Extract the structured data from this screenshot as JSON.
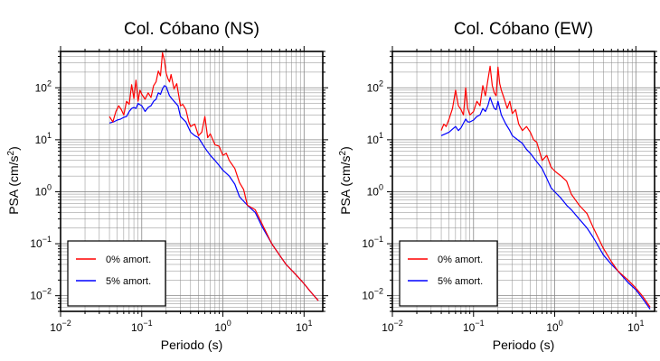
{
  "colors": {
    "series_0": "#ff0000",
    "series_5": "#0000ff",
    "axes": "#000000",
    "grid": "#888888"
  },
  "chart_data": [
    {
      "type": "line",
      "title": "Col. Cóbano (NS)",
      "xlabel": "Periodo (s)",
      "ylabel_main": "PSA (cm/s",
      "ylabel_sup": "2",
      "ylabel_tail": ")",
      "x_scale": "log",
      "y_scale": "log",
      "xlim": [
        0.01,
        17
      ],
      "ylim": [
        0.005,
        500
      ],
      "grid": true,
      "legend_position": "bottom-left",
      "x_ticks": [
        {
          "value": 0.01,
          "base": "10",
          "exp": "−2"
        },
        {
          "value": 0.1,
          "base": "10",
          "exp": "−1"
        },
        {
          "value": 1,
          "base": "10",
          "exp": "0"
        },
        {
          "value": 10,
          "base": "10",
          "exp": "1"
        }
      ],
      "y_ticks": [
        {
          "value": 0.01,
          "base": "10",
          "exp": "−2"
        },
        {
          "value": 0.1,
          "base": "10",
          "exp": "−1"
        },
        {
          "value": 1,
          "base": "10",
          "exp": "0"
        },
        {
          "value": 10,
          "base": "10",
          "exp": "1"
        },
        {
          "value": 100,
          "base": "10",
          "exp": "2"
        }
      ],
      "series": [
        {
          "name": "0% amort.",
          "color": "#ff0000",
          "x": [
            0.04,
            0.044,
            0.048,
            0.052,
            0.056,
            0.06,
            0.065,
            0.07,
            0.075,
            0.08,
            0.085,
            0.09,
            0.095,
            0.1,
            0.11,
            0.12,
            0.13,
            0.14,
            0.15,
            0.16,
            0.17,
            0.18,
            0.19,
            0.2,
            0.21,
            0.22,
            0.23,
            0.25,
            0.27,
            0.3,
            0.32,
            0.35,
            0.38,
            0.4,
            0.45,
            0.5,
            0.55,
            0.6,
            0.65,
            0.7,
            0.8,
            0.9,
            1.0,
            1.1,
            1.2,
            1.4,
            1.6,
            1.8,
            2.0,
            2.5,
            3.0,
            4.0,
            5.0,
            6.0,
            8.0,
            10.0,
            12.0,
            15.0
          ],
          "y": [
            28,
            22,
            35,
            45,
            38,
            30,
            55,
            48,
            115,
            62,
            140,
            55,
            90,
            75,
            60,
            80,
            65,
            110,
            130,
            210,
            170,
            470,
            340,
            190,
            150,
            130,
            180,
            95,
            120,
            45,
            48,
            38,
            22,
            18,
            20,
            12,
            14,
            28,
            11,
            13,
            8,
            7.5,
            5,
            5.5,
            4,
            2.8,
            1.5,
            1.1,
            0.55,
            0.45,
            0.25,
            0.1,
            0.06,
            0.04,
            0.025,
            0.017,
            0.012,
            0.008
          ]
        },
        {
          "name": "5% amort.",
          "color": "#0000ff",
          "x": [
            0.04,
            0.045,
            0.05,
            0.055,
            0.06,
            0.065,
            0.07,
            0.075,
            0.08,
            0.085,
            0.09,
            0.1,
            0.11,
            0.12,
            0.13,
            0.14,
            0.15,
            0.16,
            0.17,
            0.18,
            0.19,
            0.2,
            0.22,
            0.25,
            0.28,
            0.3,
            0.35,
            0.4,
            0.45,
            0.5,
            0.6,
            0.7,
            0.8,
            0.9,
            1.0,
            1.2,
            1.4,
            1.6,
            2.0,
            2.5,
            3.0,
            4.0,
            5.0,
            6.0,
            8.0,
            10.0,
            12.0,
            15.0
          ],
          "y": [
            21,
            22,
            24,
            25,
            27,
            28,
            35,
            40,
            42,
            40,
            50,
            45,
            35,
            42,
            45,
            55,
            60,
            80,
            75,
            95,
            110,
            105,
            70,
            55,
            45,
            28,
            22,
            14,
            12,
            11,
            7,
            5,
            4,
            3.2,
            2.6,
            2,
            1.4,
            0.8,
            0.55,
            0.4,
            0.22,
            0.1,
            0.06,
            0.04,
            0.025,
            0.017,
            0.012,
            0.008
          ]
        }
      ]
    },
    {
      "type": "line",
      "title": "Col. Cóbano (EW)",
      "xlabel": "Periodo (s)",
      "ylabel_main": "PSA (cm/s",
      "ylabel_sup": "2",
      "ylabel_tail": ")",
      "x_scale": "log",
      "y_scale": "log",
      "xlim": [
        0.01,
        17
      ],
      "ylim": [
        0.005,
        500
      ],
      "grid": true,
      "legend_position": "bottom-left",
      "x_ticks": [
        {
          "value": 0.01,
          "base": "10",
          "exp": "−2"
        },
        {
          "value": 0.1,
          "base": "10",
          "exp": "−1"
        },
        {
          "value": 1,
          "base": "10",
          "exp": "0"
        },
        {
          "value": 10,
          "base": "10",
          "exp": "1"
        }
      ],
      "y_ticks": [
        {
          "value": 0.01,
          "base": "10",
          "exp": "−2"
        },
        {
          "value": 0.1,
          "base": "10",
          "exp": "−1"
        },
        {
          "value": 1,
          "base": "10",
          "exp": "0"
        },
        {
          "value": 10,
          "base": "10",
          "exp": "1"
        },
        {
          "value": 100,
          "base": "10",
          "exp": "2"
        }
      ],
      "series": [
        {
          "name": "0% amort.",
          "color": "#ff0000",
          "x": [
            0.04,
            0.043,
            0.046,
            0.05,
            0.055,
            0.06,
            0.065,
            0.07,
            0.075,
            0.08,
            0.085,
            0.09,
            0.1,
            0.11,
            0.12,
            0.13,
            0.14,
            0.15,
            0.16,
            0.17,
            0.18,
            0.19,
            0.2,
            0.21,
            0.22,
            0.24,
            0.26,
            0.28,
            0.3,
            0.33,
            0.36,
            0.4,
            0.45,
            0.5,
            0.55,
            0.6,
            0.65,
            0.7,
            0.8,
            0.9,
            1.0,
            1.2,
            1.4,
            1.6,
            2.0,
            2.5,
            3.0,
            4.0,
            5.0,
            6.0,
            8.0,
            10.0,
            12.0,
            15.0
          ],
          "y": [
            15,
            20,
            18,
            25,
            40,
            90,
            45,
            38,
            30,
            100,
            40,
            30,
            35,
            55,
            45,
            110,
            70,
            140,
            260,
            110,
            80,
            70,
            250,
            120,
            90,
            60,
            40,
            55,
            32,
            38,
            20,
            15,
            18,
            14,
            10,
            9,
            6,
            4,
            5,
            3,
            2.5,
            2,
            1.6,
            0.9,
            0.55,
            0.38,
            0.2,
            0.08,
            0.045,
            0.03,
            0.02,
            0.014,
            0.01,
            0.006
          ]
        },
        {
          "name": "5% amort.",
          "color": "#0000ff",
          "x": [
            0.04,
            0.045,
            0.05,
            0.055,
            0.06,
            0.065,
            0.07,
            0.08,
            0.085,
            0.09,
            0.1,
            0.11,
            0.12,
            0.13,
            0.14,
            0.15,
            0.16,
            0.17,
            0.18,
            0.19,
            0.2,
            0.22,
            0.25,
            0.28,
            0.3,
            0.35,
            0.4,
            0.45,
            0.5,
            0.6,
            0.7,
            0.8,
            0.9,
            1.0,
            1.2,
            1.4,
            1.6,
            2.0,
            2.5,
            3.0,
            4.0,
            5.0,
            6.0,
            8.0,
            10.0,
            12.0,
            15.0
          ],
          "y": [
            12,
            13,
            14,
            16,
            18,
            15,
            17,
            25,
            22,
            22,
            24,
            28,
            30,
            40,
            35,
            45,
            65,
            50,
            40,
            38,
            55,
            30,
            20,
            15,
            12,
            10,
            8.5,
            6.5,
            5.5,
            3.8,
            2.8,
            1.8,
            1.2,
            1.0,
            0.75,
            0.55,
            0.45,
            0.3,
            0.2,
            0.13,
            0.06,
            0.04,
            0.03,
            0.018,
            0.013,
            0.009,
            0.0055
          ]
        }
      ]
    }
  ]
}
